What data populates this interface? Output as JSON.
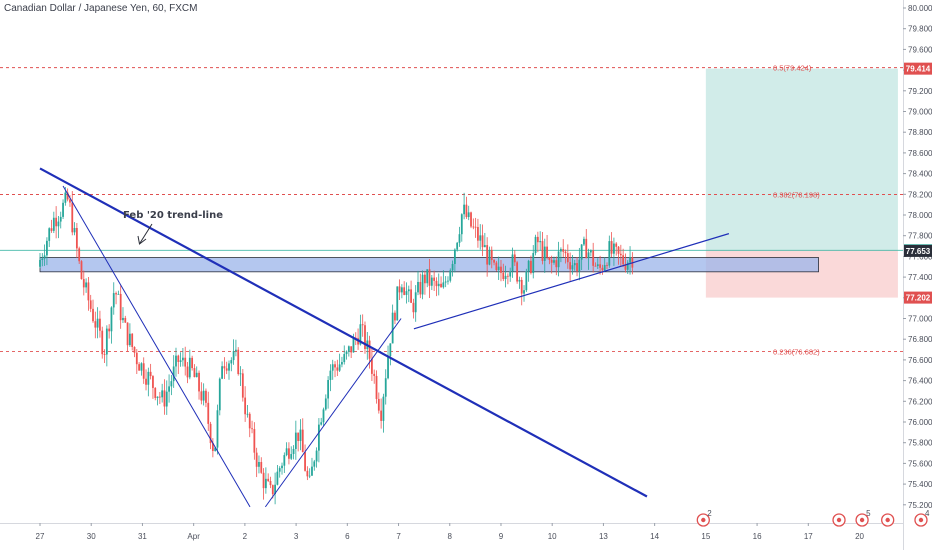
{
  "header": {
    "title": "Canadian Dollar / Japanese Yen, 60, FXCM"
  },
  "chart_data": {
    "type": "candlestick",
    "y_ticks": [
      "80.000",
      "79.800",
      "79.600",
      "79.400",
      "79.200",
      "79.000",
      "78.800",
      "78.600",
      "78.400",
      "78.200",
      "78.000",
      "77.800",
      "77.600",
      "77.400",
      "77.200",
      "77.000",
      "76.800",
      "76.600",
      "76.400",
      "76.200",
      "76.000",
      "75.800",
      "75.600",
      "75.400",
      "75.200"
    ],
    "y_range": [
      75.1,
      80.05
    ],
    "x_ticks": [
      "27",
      "30",
      "31",
      "Apr",
      "2",
      "3",
      "6",
      "7",
      "8",
      "9",
      "10",
      "13",
      "14",
      "15",
      "16",
      "17",
      "20"
    ],
    "price_labels": [
      {
        "text": "79.414",
        "value": 79.414,
        "color": "#e05050"
      },
      {
        "text": "77.659",
        "value": 77.659,
        "color": "#30b0a0"
      },
      {
        "text": "77.653",
        "value": 77.653,
        "color": "#2a2e39"
      },
      {
        "text": "77.202",
        "value": 77.202,
        "color": "#e05050"
      }
    ],
    "fib_levels": [
      {
        "label": "0.5(79.424)",
        "value": 79.424
      },
      {
        "label": "0.382(78.198)",
        "value": 78.198
      },
      {
        "label": "0.236(76.682)",
        "value": 76.682
      }
    ],
    "position": {
      "entry": 77.659,
      "target": 79.414,
      "stop": 77.202,
      "x_start": 13.0,
      "x_end": 16.75
    },
    "zone": {
      "low": 77.48,
      "high": 77.56,
      "x_start": 0.0,
      "x_end": 15.2
    },
    "annotation": "Feb '20 trend-line",
    "trend_lines": [
      {
        "x1": 0.0,
        "y1": 78.45,
        "x2": 11.85,
        "y2": 75.28,
        "width": 2.2
      },
      {
        "x1": 0.45,
        "y1": 78.28,
        "x2": 4.1,
        "y2": 75.18,
        "width": 1
      },
      {
        "x1": 4.4,
        "y1": 75.18,
        "x2": 7.05,
        "y2": 77.0,
        "width": 1
      },
      {
        "x1": 7.3,
        "y1": 76.9,
        "x2": 13.45,
        "y2": 77.82,
        "width": 1.2
      }
    ],
    "waypoints": [
      [
        0.0,
        77.5
      ],
      [
        0.3,
        77.95
      ],
      [
        0.6,
        78.15
      ],
      [
        0.85,
        77.4
      ],
      [
        1.1,
        77.0
      ],
      [
        1.3,
        76.7
      ],
      [
        1.5,
        77.3
      ],
      [
        1.7,
        76.9
      ],
      [
        1.95,
        76.6
      ],
      [
        2.2,
        76.4
      ],
      [
        2.45,
        76.2
      ],
      [
        2.75,
        76.6
      ],
      [
        3.0,
        76.5
      ],
      [
        3.25,
        76.2
      ],
      [
        3.45,
        75.7
      ],
      [
        3.6,
        76.6
      ],
      [
        3.9,
        76.6
      ],
      [
        4.1,
        76.0
      ],
      [
        4.35,
        75.5
      ],
      [
        4.55,
        75.3
      ],
      [
        4.75,
        75.6
      ],
      [
        4.95,
        75.8
      ],
      [
        5.1,
        75.9
      ],
      [
        5.3,
        75.35
      ],
      [
        5.5,
        76.0
      ],
      [
        5.7,
        76.5
      ],
      [
        6.0,
        76.6
      ],
      [
        6.3,
        76.9
      ],
      [
        6.5,
        76.6
      ],
      [
        6.7,
        76.1
      ],
      [
        6.9,
        76.9
      ],
      [
        7.1,
        77.4
      ],
      [
        7.3,
        77.1
      ],
      [
        7.55,
        77.4
      ],
      [
        7.9,
        77.25
      ],
      [
        8.1,
        77.6
      ],
      [
        8.3,
        78.05
      ],
      [
        8.45,
        77.9
      ],
      [
        8.7,
        77.7
      ],
      [
        8.95,
        77.4
      ],
      [
        9.25,
        77.55
      ],
      [
        9.5,
        77.3
      ],
      [
        9.75,
        77.75
      ],
      [
        10.0,
        77.5
      ],
      [
        10.25,
        77.65
      ],
      [
        10.5,
        77.5
      ],
      [
        10.7,
        77.7
      ],
      [
        10.95,
        77.45
      ],
      [
        11.15,
        77.65
      ],
      [
        11.45,
        77.55
      ],
      [
        11.6,
        77.6
      ]
    ]
  },
  "events": [
    {
      "x": 12.95,
      "label": "2"
    },
    {
      "x": 15.6,
      "label": ""
    },
    {
      "x": 16.05,
      "label": "5"
    },
    {
      "x": 16.55,
      "label": ""
    },
    {
      "x": 17.2,
      "label": "4"
    },
    {
      "x": 17.55,
      "label": "2"
    }
  ]
}
